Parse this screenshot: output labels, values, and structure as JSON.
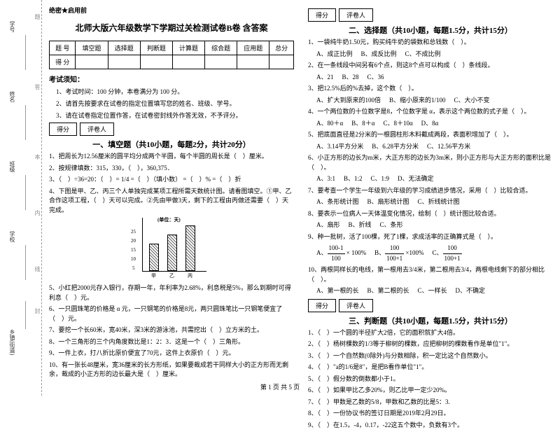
{
  "binding": {
    "labels": [
      "学号",
      "姓名",
      "班级",
      "学校",
      "乡镇(街道)"
    ],
    "marks": [
      "题",
      "答",
      "本",
      "内",
      "线",
      "封"
    ]
  },
  "confidential": "绝密★启用前",
  "title": "北师大版六年级数学下学期过关检测试卷B卷 含答案",
  "scoreTable": {
    "headers": [
      "题 号",
      "填空题",
      "选择题",
      "判断题",
      "计算题",
      "综合题",
      "应用题",
      "总分"
    ],
    "row2": "得 分"
  },
  "noticeHead": "考试须知：",
  "notices": [
    "1、考试时间：100 分钟，本卷满分为 100 分。",
    "2、请首先按要求在试卷的指定位置填写您的姓名、班级、学号。",
    "3、请在试卷指定位置作答，在试卷密封线外作答无效，不予评分。"
  ],
  "scoreBox": {
    "a": "得分",
    "b": "评卷人"
  },
  "sec1": {
    "title": "一、填空题（共10小题，每题2分，共计20分）",
    "q": [
      "1、把周长为12.56厘米的圆平均分成两个半圆，每个半圆的周长是（　）厘米。",
      "2、按规律填数：315，330，（　），360,375．",
      "3、（　）÷36=20：（　）= 1/4 =（　）（填小数） =（　）% =（　）折",
      "4、下图是甲、乙、丙三个人单独完成某项工程所需天数统计图。请看图填空。①甲、乙合作这项工程，（　）天可以完成。②先由甲做3天，剩下的工程由丙做还需要（　）天完成。",
      "5、小红把2000元存入银行，存期一年，年利率为2.68%，利息税是5%，那么到期时可得利息（　）元。",
      "6、一只圆珠笔的价格是 α 元，一只钢笔的价格是8元，两只圆珠笔比一只钢笔便宜了（　）元。",
      "7、要挖一个长60米，宽40米，深3米的游泳池，共需挖出（　）立方米的土。",
      "8、一个三角形的三个内角度数比是1：2：3．这是一个（　）三角形。",
      "9、一件上衣，打八折比原价便宜了70元，这件上衣原价（　）元。",
      "10、有一张长48厘米，宽36厘米的长方形纸，如果要裁成若干同样大小的正方形而无剩余，裁成的小正方形的边长最大是（　）厘米。"
    ],
    "chart": {
      "type": "bar",
      "unit": "(单位：天)",
      "yticks": [
        "5",
        "10",
        "15",
        "20",
        "25"
      ],
      "categories": [
        "甲",
        "乙",
        "丙"
      ],
      "values": [
        15,
        20,
        25
      ],
      "ylim": [
        0,
        25
      ],
      "bar_color": "#666666",
      "axis_color": "#000000",
      "fontsize": 7
    }
  },
  "sec2": {
    "title": "二、选择题（共10小题，每题1.5分，共计15分）",
    "q": [
      {
        "t": "1、一袋纯牛奶1.50元，购买纯牛奶的袋数和总钱数（　）。",
        "o": [
          "A、成正比例",
          "B、成反比例",
          "C、不成比例"
        ]
      },
      {
        "t": "2、在一条线段中间另有6个点，则这8个点可以构成（　）条线段。",
        "o": [
          "A、21",
          "B、28",
          "C、36"
        ]
      },
      {
        "t": "3、把12.5%后的%去掉，这个数（　）。",
        "o": [
          "A、扩大到原来的100倍",
          "B、缩小原来的1/100",
          "C、大小不变"
        ]
      },
      {
        "t": "4、一个两位数的十位数字是8，个位数字是 α，表示这个两位数的式子是（　）。",
        "o": [
          "A、80＋α",
          "B、8＋α",
          "C、8＋10α",
          "D、8α"
        ]
      },
      {
        "t": "5、把底面直径是2分米的一根圆柱形木料截成两段，表面积增加了（　）。",
        "o": [
          "A、3.14平方分米",
          "B、6.28平方分米",
          "C、12.56平方米"
        ]
      },
      {
        "t": "6、小正方形的边长为m米，大正方形的边长为3m米，则小正方形与大正方形的面积比是（　）。",
        "o": [
          "A、3:1",
          "B、1:2",
          "C、1:9",
          "D、无法确定"
        ]
      },
      {
        "t": "7、要考查一个学生一年级到六年级的学习成绩进步情况，采用（　）比较合适。",
        "o": [
          "A、条形统计图",
          "B、扇形统计图",
          "C、折线统计图"
        ]
      },
      {
        "t": "8、要表示一位病人一天体温变化情况，绘制（　）统计图比较合适。",
        "o": [
          "A、扇形",
          "B、折线",
          "C、条形"
        ]
      },
      {
        "t": "9、种一批树，活了100棵，死了1棵，求成活率的正确算式是（　）。",
        "o": []
      },
      {
        "t": "10、两根同样长的电线，第一根用去3/4米，第二根用去3/4，两根电线剩下的部分相比（　）。",
        "o": [
          "A、第一根的长",
          "B、第二根的长",
          "C、一样长",
          "D、不确定"
        ]
      }
    ],
    "q9opts": {
      "A": {
        "n": "100-1",
        "d": "100"
      },
      "B": {
        "n": "100",
        "d": "100+1"
      },
      "C": {
        "n": "100",
        "d": "100+1"
      }
    }
  },
  "sec3": {
    "title": "三、判断题（共10小题，每题1.5分，共计15分）",
    "q": [
      "1、（　）一个圆的半径扩大2倍，它的面积就扩大4倍。",
      "2、（　）杨树棵数的1/3等于柳树的棵数，应把柳树的棵数看作是单位\"1\"。",
      "3、（　）一个自然数(0除外)与分数相除，积一定比这个自然数小。",
      "4、（　）\"a的1/6是8\"，是把B看作单位\"1\"。",
      "5、（　）假分数的倒数都小于1。",
      "6、（　）如果甲比乙多20%，则乙比甲一定少20%。",
      "7、（　）甲数是乙数的5/8，甲数和乙数的比是5：3.",
      "8、（　）一份协议书的签订日期是2019年2月29日。",
      "9、（　）在1.5，-4，0.17，-22这五个数中，负数有3个。"
    ]
  },
  "footer": "第 1 页 共 5 页"
}
